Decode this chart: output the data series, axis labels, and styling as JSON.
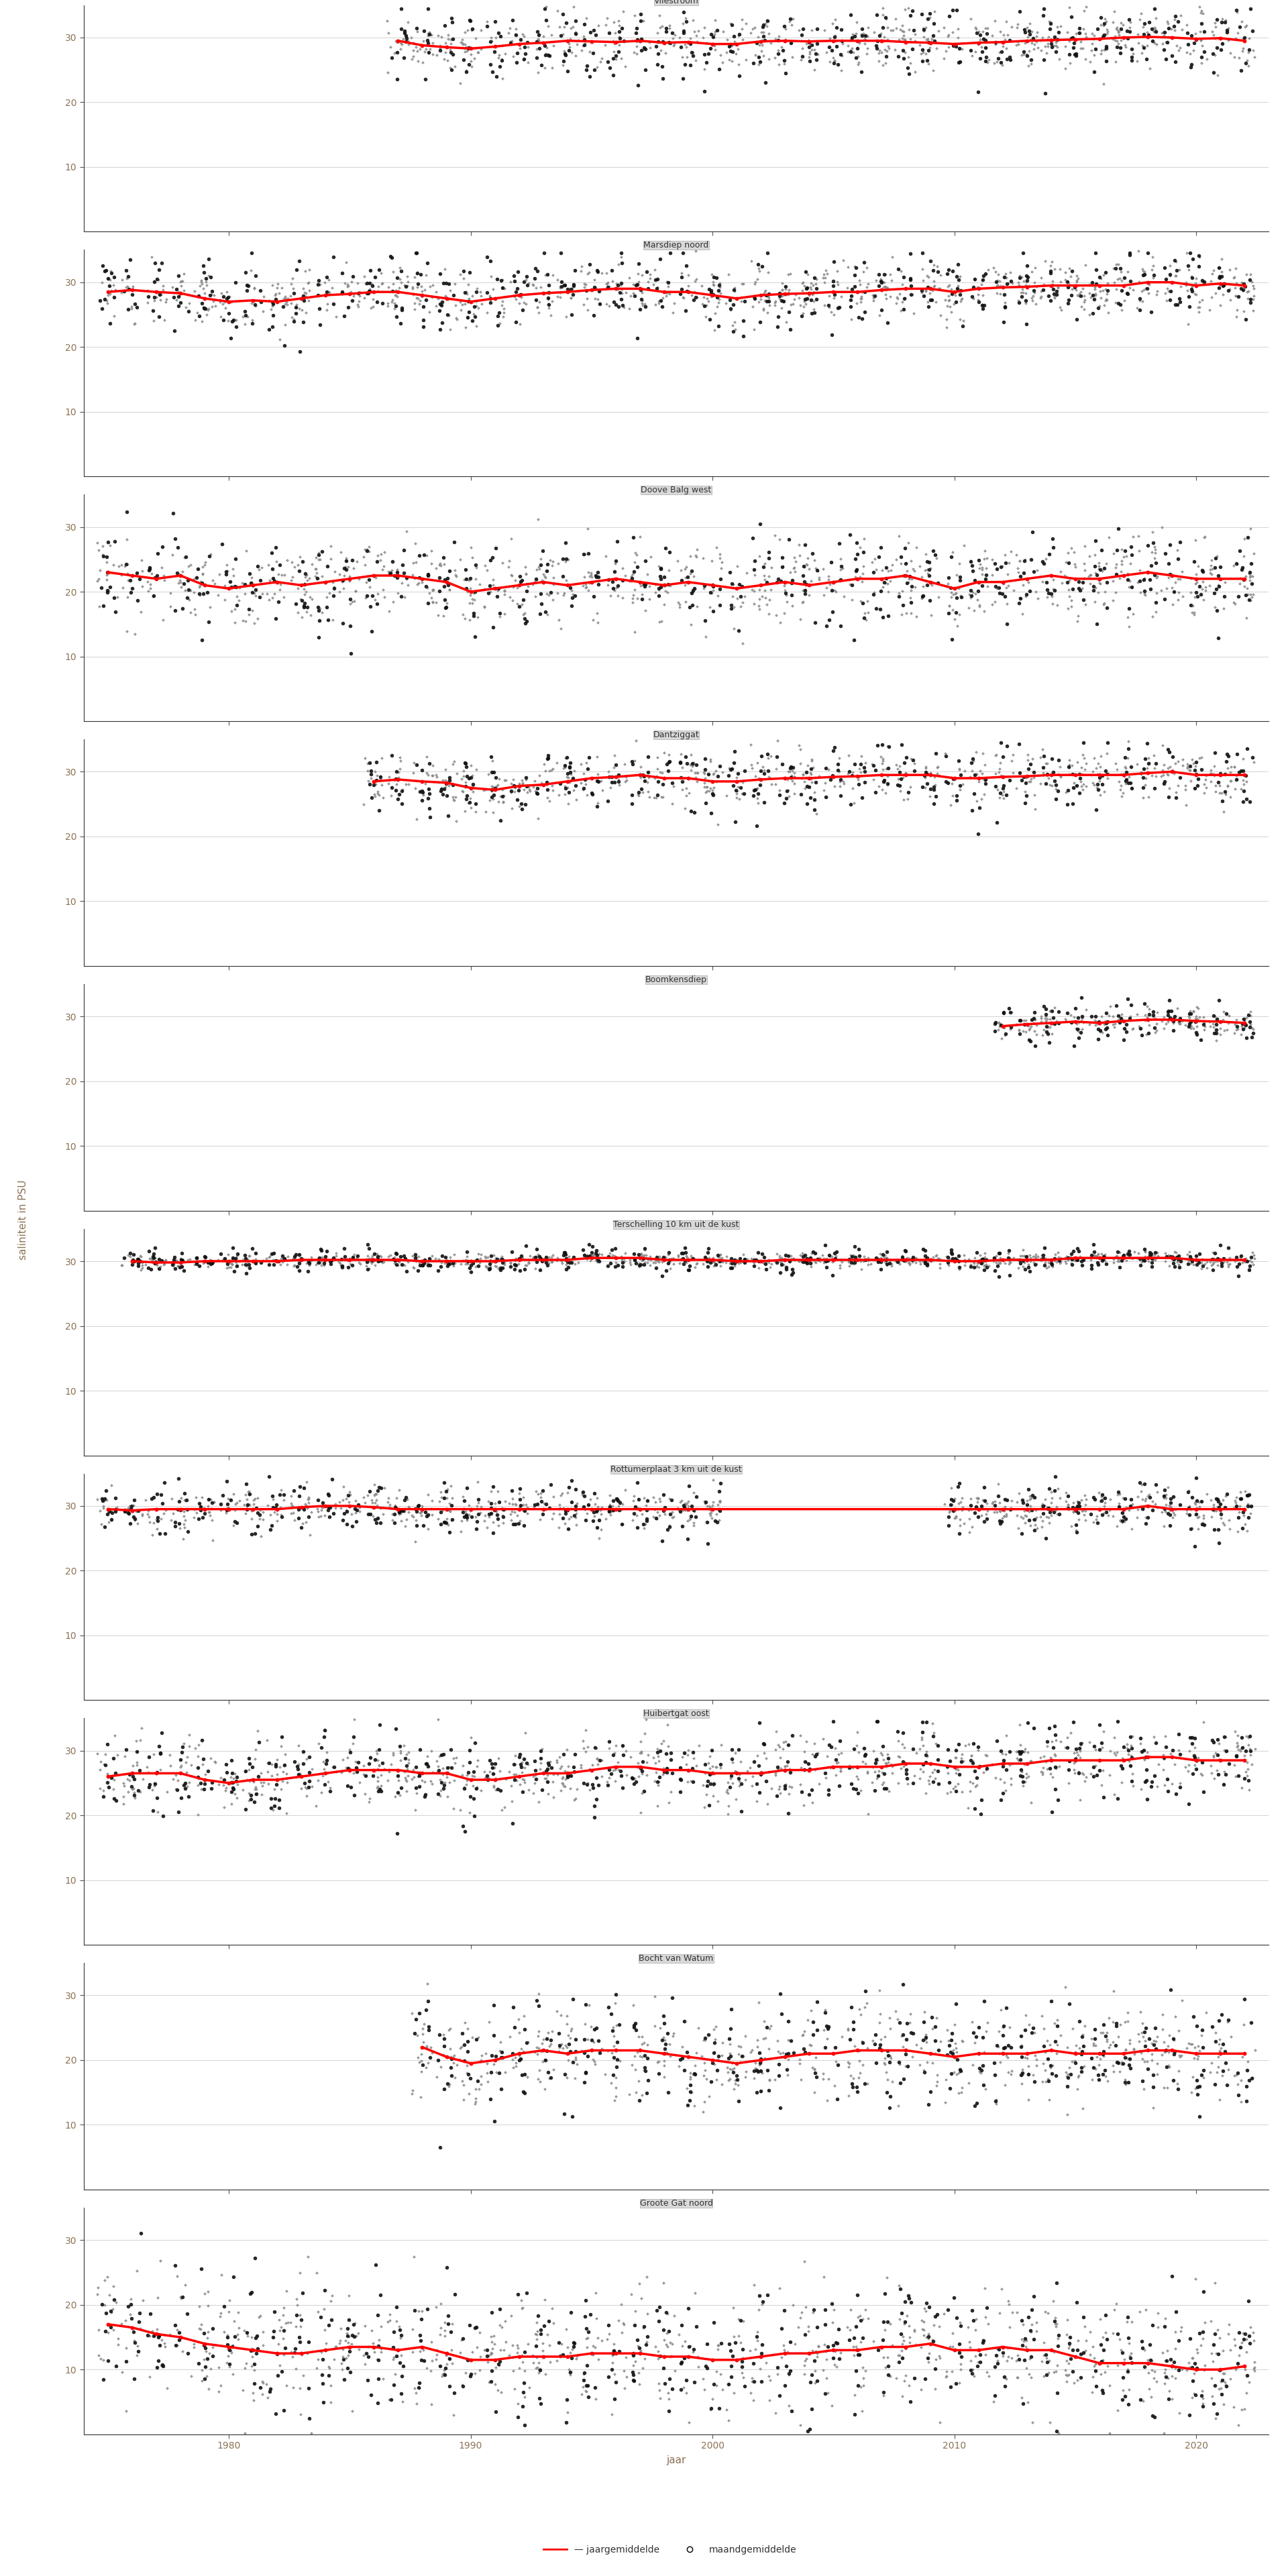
{
  "stations": [
    "Vliestroom",
    "Marsdiep noord",
    "Doove Balg west",
    "Dantziggat",
    "Boomkensdiep",
    "Terschelling 10 km uit de kust",
    "Rottumerplaat 3 km uit de kust",
    "Huibertgat oost",
    "Bocht van Watum",
    "Groote Gat noord"
  ],
  "ylabel": "saliniteit in PSU",
  "xlabel": "jaar",
  "legend_annual": "jaargemiddelde",
  "legend_monthly": "maandgemiddelde",
  "background_color": "#ffffff",
  "panel_header_color": "#d9d9d9",
  "red_line_color": "#ff0000",
  "xmin": 1974,
  "xmax": 2023,
  "xticks": [
    1980,
    1990,
    2000,
    2010,
    2020
  ],
  "stations_data": {
    "Vliestroom": {
      "ylim": [
        0,
        35
      ],
      "yticks": [
        10,
        20,
        30
      ],
      "x_start": 1987,
      "x_end": 2022,
      "annual_x": [
        1987,
        1988,
        1989,
        1990,
        1991,
        1992,
        1993,
        1994,
        1995,
        1996,
        1997,
        1998,
        1999,
        2000,
        2001,
        2002,
        2003,
        2004,
        2005,
        2006,
        2007,
        2008,
        2009,
        2010,
        2011,
        2012,
        2013,
        2014,
        2015,
        2016,
        2017,
        2018,
        2019,
        2020,
        2021,
        2022
      ],
      "annual_y": [
        29.5,
        28.8,
        28.5,
        28.3,
        28.6,
        29.0,
        29.2,
        29.5,
        29.4,
        29.3,
        29.5,
        29.2,
        29.3,
        29.0,
        29.0,
        29.4,
        29.5,
        29.4,
        29.5,
        29.5,
        29.5,
        29.3,
        29.2,
        29.0,
        29.2,
        29.3,
        29.5,
        29.6,
        29.7,
        29.8,
        30.0,
        30.1,
        30.0,
        29.8,
        29.9,
        29.5
      ],
      "monthly_spread": 2.8,
      "indiv_spread": 2.0
    },
    "Marsdiep noord": {
      "ylim": [
        0,
        35
      ],
      "yticks": [
        10,
        20,
        30
      ],
      "x_start": 1975,
      "x_end": 2022,
      "annual_x": [
        1975,
        1976,
        1977,
        1978,
        1979,
        1980,
        1981,
        1982,
        1983,
        1984,
        1985,
        1986,
        1987,
        1988,
        1989,
        1990,
        1991,
        1992,
        1993,
        1994,
        1995,
        1996,
        1997,
        1998,
        1999,
        2000,
        2001,
        2002,
        2003,
        2004,
        2005,
        2006,
        2007,
        2008,
        2009,
        2010,
        2011,
        2012,
        2013,
        2014,
        2015,
        2016,
        2017,
        2018,
        2019,
        2020,
        2021,
        2022
      ],
      "annual_y": [
        28.5,
        28.8,
        28.5,
        28.3,
        27.5,
        27.0,
        27.2,
        27.0,
        27.5,
        28.0,
        28.2,
        28.5,
        28.5,
        28.0,
        27.5,
        27.0,
        27.5,
        28.0,
        28.3,
        28.5,
        28.8,
        29.0,
        29.0,
        28.5,
        28.5,
        28.0,
        27.5,
        28.0,
        28.2,
        28.3,
        28.5,
        28.5,
        28.8,
        29.0,
        29.0,
        28.5,
        29.0,
        29.2,
        29.3,
        29.5,
        29.5,
        29.5,
        29.5,
        30.0,
        30.0,
        29.5,
        29.8,
        29.5
      ],
      "monthly_spread": 2.8,
      "indiv_spread": 2.0
    },
    "Doove Balg west": {
      "ylim": [
        0,
        35
      ],
      "yticks": [
        10,
        20,
        30
      ],
      "x_start": 1975,
      "x_end": 2022,
      "annual_x": [
        1975,
        1976,
        1977,
        1978,
        1979,
        1980,
        1981,
        1982,
        1983,
        1984,
        1985,
        1986,
        1987,
        1988,
        1989,
        1990,
        1991,
        1992,
        1993,
        1994,
        1995,
        1996,
        1997,
        1998,
        1999,
        2000,
        2001,
        2002,
        2003,
        2004,
        2005,
        2006,
        2007,
        2008,
        2009,
        2010,
        2011,
        2012,
        2013,
        2014,
        2015,
        2016,
        2017,
        2018,
        2019,
        2020,
        2021,
        2022
      ],
      "annual_y": [
        23.0,
        22.5,
        22.0,
        22.5,
        21.0,
        20.5,
        21.0,
        21.5,
        21.0,
        21.5,
        22.0,
        22.5,
        22.5,
        22.0,
        21.5,
        20.0,
        20.5,
        21.0,
        21.5,
        21.0,
        21.5,
        22.0,
        21.5,
        21.0,
        21.5,
        21.0,
        20.5,
        21.0,
        21.5,
        21.0,
        21.5,
        22.0,
        22.0,
        22.5,
        21.5,
        20.5,
        21.5,
        21.5,
        22.0,
        22.5,
        22.0,
        22.0,
        22.5,
        23.0,
        22.5,
        22.0,
        22.0,
        22.0
      ],
      "monthly_spread": 3.5,
      "indiv_spread": 3.0
    },
    "Dantziggat": {
      "ylim": [
        0,
        35
      ],
      "yticks": [
        10,
        20,
        30
      ],
      "x_start": 1986,
      "x_end": 2022,
      "annual_x": [
        1986,
        1987,
        1988,
        1989,
        1990,
        1991,
        1992,
        1993,
        1994,
        1995,
        1996,
        1997,
        1998,
        1999,
        2000,
        2001,
        2002,
        2003,
        2004,
        2005,
        2006,
        2007,
        2008,
        2009,
        2010,
        2011,
        2012,
        2013,
        2014,
        2015,
        2016,
        2017,
        2018,
        2019,
        2020,
        2021,
        2022
      ],
      "annual_y": [
        28.5,
        28.8,
        28.5,
        28.3,
        27.5,
        27.2,
        27.8,
        28.0,
        28.5,
        29.0,
        29.2,
        29.5,
        29.0,
        29.0,
        28.5,
        28.5,
        28.8,
        29.0,
        29.0,
        29.2,
        29.3,
        29.5,
        29.5,
        29.5,
        29.0,
        29.0,
        29.2,
        29.3,
        29.5,
        29.5,
        29.5,
        29.5,
        29.8,
        30.0,
        29.5,
        29.5,
        29.5
      ],
      "monthly_spread": 2.5,
      "indiv_spread": 2.0
    },
    "Boomkensdiep": {
      "ylim": [
        0,
        35
      ],
      "yticks": [
        10,
        20,
        30
      ],
      "x_start": 2012,
      "x_end": 2022,
      "annual_x": [
        2012,
        2013,
        2014,
        2015,
        2016,
        2017,
        2018,
        2019,
        2020,
        2021,
        2022
      ],
      "annual_y": [
        28.5,
        28.8,
        29.0,
        29.2,
        29.0,
        29.3,
        29.5,
        29.5,
        29.3,
        29.2,
        29.0
      ],
      "monthly_spread": 1.5,
      "indiv_spread": 1.0
    },
    "Terschelling 10 km uit de kust": {
      "ylim": [
        0,
        35
      ],
      "yticks": [
        10,
        20,
        30
      ],
      "x_start": 1976,
      "x_end": 2022,
      "annual_x": [
        1976,
        1977,
        1978,
        1979,
        1980,
        1981,
        1982,
        1983,
        1984,
        1985,
        1986,
        1987,
        1988,
        1989,
        1990,
        1991,
        1992,
        1993,
        1994,
        1995,
        1996,
        1997,
        1998,
        1999,
        2000,
        2001,
        2002,
        2003,
        2004,
        2005,
        2006,
        2007,
        2008,
        2009,
        2010,
        2011,
        2012,
        2013,
        2014,
        2015,
        2016,
        2017,
        2018,
        2019,
        2020,
        2021,
        2022
      ],
      "annual_y": [
        30.0,
        29.8,
        29.8,
        30.0,
        30.0,
        30.0,
        30.0,
        30.2,
        30.2,
        30.2,
        30.2,
        30.2,
        30.0,
        30.0,
        30.0,
        30.0,
        30.2,
        30.2,
        30.2,
        30.5,
        30.5,
        30.5,
        30.2,
        30.2,
        30.2,
        30.0,
        30.0,
        30.2,
        30.2,
        30.2,
        30.2,
        30.2,
        30.2,
        30.2,
        30.0,
        30.0,
        30.2,
        30.2,
        30.2,
        30.5,
        30.5,
        30.5,
        30.5,
        30.5,
        30.2,
        30.2,
        30.2
      ],
      "monthly_spread": 1.0,
      "indiv_spread": 0.5
    },
    "Rottumerplaat 3 km uit de kust": {
      "ylim": [
        0,
        35
      ],
      "yticks": [
        10,
        20,
        30
      ],
      "x_start": 1975,
      "x_end": 2022,
      "annual_x": [
        1975,
        1976,
        1977,
        1978,
        1979,
        1980,
        1981,
        1982,
        1983,
        1984,
        1985,
        1986,
        1987,
        1988,
        1989,
        1990,
        1991,
        1992,
        1993,
        1994,
        1995,
        1996,
        1997,
        1998,
        1999,
        2000,
        2010,
        2011,
        2012,
        2013,
        2014,
        2015,
        2016,
        2017,
        2018,
        2019,
        2020,
        2021,
        2022
      ],
      "annual_y": [
        29.5,
        29.3,
        29.5,
        29.5,
        29.5,
        29.5,
        29.5,
        29.5,
        29.8,
        30.0,
        30.0,
        29.8,
        29.5,
        29.5,
        29.5,
        29.5,
        29.5,
        29.5,
        29.5,
        29.5,
        29.5,
        29.5,
        29.5,
        29.5,
        29.5,
        29.5,
        29.5,
        29.5,
        29.5,
        29.5,
        29.5,
        29.5,
        29.5,
        29.5,
        30.0,
        29.5,
        29.5,
        29.5,
        29.5
      ],
      "monthly_spread": 2.0,
      "indiv_spread": 1.5
    },
    "Huibertgat oost": {
      "ylim": [
        0,
        35
      ],
      "yticks": [
        10,
        20,
        30
      ],
      "x_start": 1975,
      "x_end": 2022,
      "annual_x": [
        1975,
        1976,
        1977,
        1978,
        1979,
        1980,
        1981,
        1982,
        1983,
        1984,
        1985,
        1986,
        1987,
        1988,
        1989,
        1990,
        1991,
        1992,
        1993,
        1994,
        1995,
        1996,
        1997,
        1998,
        1999,
        2000,
        2001,
        2002,
        2003,
        2004,
        2005,
        2006,
        2007,
        2008,
        2009,
        2010,
        2011,
        2012,
        2013,
        2014,
        2015,
        2016,
        2017,
        2018,
        2019,
        2020,
        2021,
        2022
      ],
      "annual_y": [
        26.0,
        26.5,
        26.5,
        26.5,
        25.5,
        25.0,
        25.5,
        25.5,
        26.0,
        26.5,
        27.0,
        27.0,
        27.0,
        26.5,
        26.5,
        25.5,
        25.5,
        26.0,
        26.5,
        26.5,
        27.0,
        27.5,
        27.5,
        27.0,
        27.0,
        26.5,
        26.5,
        26.5,
        27.0,
        27.0,
        27.5,
        27.5,
        27.5,
        28.0,
        28.0,
        27.5,
        27.5,
        28.0,
        28.0,
        28.5,
        28.5,
        28.5,
        28.5,
        29.0,
        29.0,
        28.5,
        28.5,
        28.5
      ],
      "monthly_spread": 3.0,
      "indiv_spread": 2.5
    },
    "Bocht van Watum": {
      "ylim": [
        0,
        35
      ],
      "yticks": [
        10,
        20,
        30
      ],
      "x_start": 1988,
      "x_end": 2022,
      "annual_x": [
        1988,
        1989,
        1990,
        1991,
        1992,
        1993,
        1994,
        1995,
        1996,
        1997,
        1998,
        1999,
        2000,
        2001,
        2002,
        2003,
        2004,
        2005,
        2006,
        2007,
        2008,
        2009,
        2010,
        2011,
        2012,
        2013,
        2014,
        2015,
        2016,
        2017,
        2018,
        2019,
        2020,
        2021,
        2022
      ],
      "annual_y": [
        22.0,
        20.5,
        19.5,
        20.0,
        21.0,
        21.5,
        21.0,
        21.5,
        21.5,
        21.5,
        21.0,
        20.5,
        20.0,
        19.5,
        20.0,
        20.5,
        21.0,
        21.0,
        21.5,
        21.5,
        21.5,
        21.0,
        20.5,
        21.0,
        21.0,
        21.0,
        21.5,
        21.0,
        21.0,
        21.0,
        21.5,
        21.5,
        21.0,
        21.0,
        21.0
      ],
      "monthly_spread": 4.0,
      "indiv_spread": 3.5
    },
    "Groote Gat noord": {
      "ylim": [
        0,
        35
      ],
      "yticks": [
        10,
        20,
        30
      ],
      "x_start": 1975,
      "x_end": 2022,
      "annual_x": [
        1975,
        1976,
        1977,
        1978,
        1979,
        1980,
        1981,
        1982,
        1983,
        1984,
        1985,
        1986,
        1987,
        1988,
        1989,
        1990,
        1991,
        1992,
        1993,
        1994,
        1995,
        1996,
        1997,
        1998,
        1999,
        2000,
        2001,
        2002,
        2003,
        2004,
        2005,
        2006,
        2007,
        2008,
        2009,
        2010,
        2011,
        2012,
        2013,
        2014,
        2015,
        2016,
        2017,
        2018,
        2019,
        2020,
        2021,
        2022
      ],
      "annual_y": [
        17.0,
        16.5,
        15.5,
        15.0,
        14.0,
        13.5,
        13.0,
        12.5,
        12.5,
        13.0,
        13.5,
        13.5,
        13.0,
        13.5,
        12.5,
        11.5,
        11.5,
        12.0,
        12.0,
        12.0,
        12.5,
        12.5,
        12.5,
        12.0,
        12.0,
        11.5,
        11.5,
        12.0,
        12.5,
        12.5,
        13.0,
        13.0,
        13.5,
        13.5,
        14.0,
        13.0,
        13.0,
        13.5,
        13.0,
        13.0,
        12.0,
        11.0,
        11.0,
        11.0,
        10.5,
        10.0,
        10.0,
        10.5
      ],
      "monthly_spread": 5.0,
      "indiv_spread": 4.5
    }
  }
}
